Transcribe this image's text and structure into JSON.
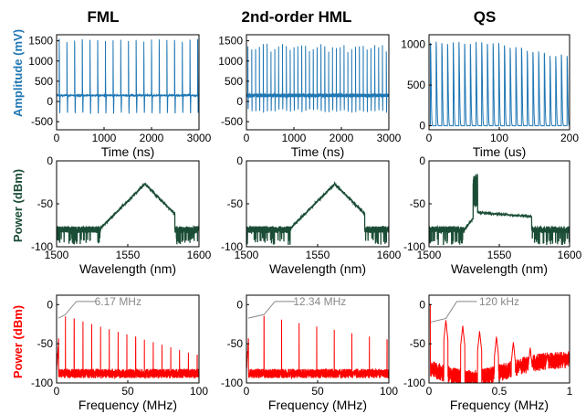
{
  "column_titles": [
    "FML",
    "2nd-order HML",
    "QS"
  ],
  "row_ylabels": [
    "Amplitude (mV)",
    "Power (dBm)",
    "Power (dBm)"
  ],
  "colors": {
    "row1": "#1f77b4",
    "row2": "#1b4d36",
    "row3": "#ff0000",
    "annotation": "#888888"
  },
  "chart_data": [
    {
      "type": "line",
      "panel": "FML time trace",
      "xlabel": "Time (ns)",
      "ylabel": "Amplitude (mV)",
      "xlim": [
        0,
        3000
      ],
      "ylim": [
        -700,
        1650
      ],
      "xticks": [
        0,
        1000,
        2000,
        3000
      ],
      "yticks": [
        -500,
        0,
        500,
        1000,
        1500
      ],
      "pulse_period": 162,
      "pulse_start": 55,
      "pulse_peak": 1540,
      "baseline": 150,
      "dip": -300
    },
    {
      "type": "line",
      "panel": "2nd-order HML time trace",
      "xlabel": "Time (ns)",
      "ylabel": "Amplitude (mV)",
      "xlim": [
        0,
        3000
      ],
      "ylim": [
        -700,
        1650
      ],
      "xticks": [
        0,
        1000,
        2000,
        3000
      ],
      "yticks": [
        -500,
        0,
        500,
        1000,
        1500
      ],
      "pulse_period": 81,
      "pulse_start": 30,
      "pulse_peak": 1390,
      "baseline": 150,
      "dip": -250
    },
    {
      "type": "line",
      "panel": "QS time trace",
      "xlabel": "Time (us)",
      "ylabel": "Amplitude (mV)",
      "xlim": [
        0,
        200
      ],
      "ylim": [
        -50,
        1120
      ],
      "xticks": [
        0,
        100,
        200
      ],
      "yticks": [
        0,
        500,
        1000
      ],
      "pulse_period": 8.1,
      "pulse_start": 2,
      "pulse_peak": 1020,
      "pulse_peak_end": 860,
      "baseline": 0
    },
    {
      "type": "line",
      "panel": "FML optical spectrum",
      "xlabel": "Wavelength (nm)",
      "ylabel": "Power (dBm)",
      "xlim": [
        1500,
        1600
      ],
      "ylim": [
        -100,
        0
      ],
      "xticks": [
        1500,
        1550,
        1600
      ],
      "yticks": [
        -100,
        -50,
        0
      ],
      "center": 1562,
      "peak": -27,
      "floor": -80,
      "edge_low": 1531,
      "edge_high": 1583
    },
    {
      "type": "line",
      "panel": "2nd-order HML optical spectrum",
      "xlabel": "Wavelength (nm)",
      "ylabel": "Power (dBm)",
      "xlim": [
        1500,
        1600
      ],
      "ylim": [
        -100,
        0
      ],
      "xticks": [
        1500,
        1550,
        1600
      ],
      "yticks": [
        -100,
        -50,
        0
      ],
      "center": 1562,
      "peak": -27,
      "floor": -80,
      "edge_low": 1531,
      "edge_high": 1583
    },
    {
      "type": "line",
      "panel": "QS optical spectrum",
      "xlabel": "Wavelength (nm)",
      "ylabel": "Power (dBm)",
      "xlim": [
        1500,
        1600
      ],
      "ylim": [
        -100,
        0
      ],
      "xticks": [
        1500,
        1550,
        1600
      ],
      "yticks": [
        -100,
        -50,
        0
      ],
      "center": 1533,
      "peak": -15,
      "plateau": -60,
      "floor": -80,
      "edge_low": 1525,
      "edge_high": 1573
    },
    {
      "type": "line",
      "panel": "FML RF spectrum",
      "xlabel": "Frequency (MHz)",
      "ylabel": "Power (dBm)",
      "xlim": [
        0,
        100
      ],
      "ylim": [
        -100,
        12
      ],
      "xticks": [
        0,
        50,
        100
      ],
      "yticks": [
        -100,
        -50,
        0
      ],
      "harmonic_spacing": 6.17,
      "first_peak": -15,
      "peak_step": -3.3,
      "floor": -88,
      "annotation": "6.17 MHz"
    },
    {
      "type": "line",
      "panel": "2nd-order HML RF spectrum",
      "xlabel": "Frequency (MHz)",
      "ylabel": "Power (dBm)",
      "xlim": [
        0,
        100
      ],
      "ylim": [
        -100,
        12
      ],
      "xticks": [
        0,
        50,
        100
      ],
      "yticks": [
        -100,
        -50,
        0
      ],
      "harmonic_spacing": 12.34,
      "first_peak": -15,
      "peak_step": -4.3,
      "floor": -88,
      "annotation": "12.34 MHz"
    },
    {
      "type": "line",
      "panel": "QS RF spectrum",
      "xlabel": "Frequency (MHz)",
      "ylabel": "Power (dBm)",
      "xlim": [
        0,
        1
      ],
      "ylim": [
        -100,
        12
      ],
      "xticks": [
        0,
        0.5,
        1
      ],
      "yticks": [
        -100,
        -50,
        0
      ],
      "harmonic_spacing": 0.12,
      "first_peak": -20,
      "peak_step": -7,
      "floor": -70,
      "annotation": "120 kHz"
    }
  ]
}
